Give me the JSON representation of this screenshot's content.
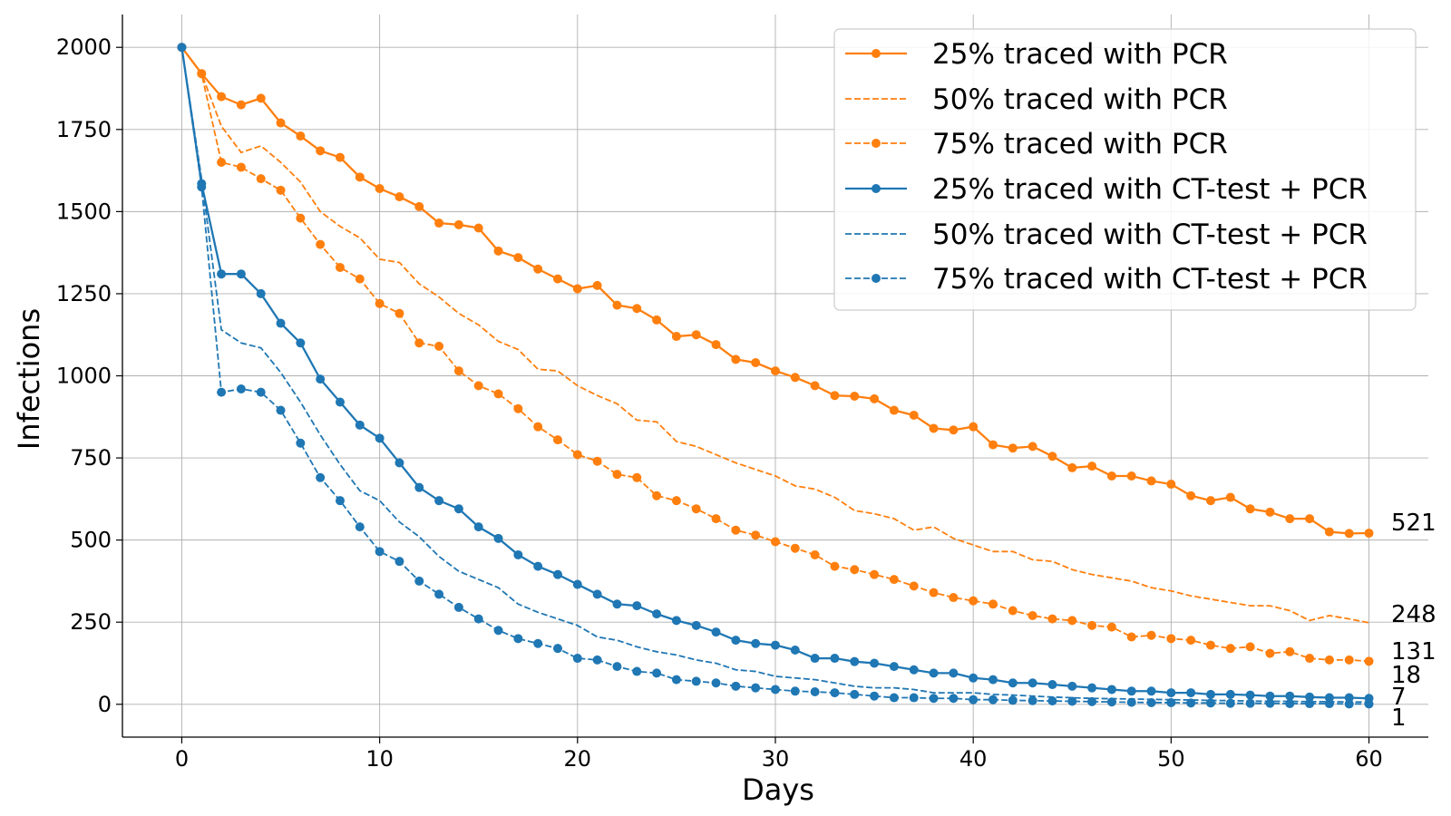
{
  "chart_data": {
    "type": "line",
    "xlabel": "Days",
    "ylabel": "Infections",
    "xlim": [
      -3,
      63
    ],
    "ylim": [
      -100,
      2100
    ],
    "xticks": [
      0,
      10,
      20,
      30,
      40,
      50,
      60
    ],
    "yticks": [
      0,
      250,
      500,
      750,
      1000,
      1250,
      1500,
      1750,
      2000
    ],
    "grid": true,
    "legend_position": "top-right",
    "colors": {
      "pcr": "#ff7f0e",
      "ct": "#1f77b4"
    },
    "x": [
      0,
      1,
      2,
      3,
      4,
      5,
      6,
      7,
      8,
      9,
      10,
      11,
      12,
      13,
      14,
      15,
      16,
      17,
      18,
      19,
      20,
      21,
      22,
      23,
      24,
      25,
      26,
      27,
      28,
      29,
      30,
      31,
      32,
      33,
      34,
      35,
      36,
      37,
      38,
      39,
      40,
      41,
      42,
      43,
      44,
      45,
      46,
      47,
      48,
      49,
      50,
      51,
      52,
      53,
      54,
      55,
      56,
      57,
      58,
      59,
      60
    ],
    "series": [
      {
        "name": "25% traced with PCR",
        "color": "#ff7f0e",
        "style": "solid",
        "markers": true,
        "values": [
          2000,
          1920,
          1850,
          1825,
          1845,
          1770,
          1730,
          1685,
          1665,
          1605,
          1570,
          1545,
          1515,
          1465,
          1460,
          1450,
          1380,
          1360,
          1325,
          1295,
          1265,
          1275,
          1215,
          1205,
          1170,
          1120,
          1125,
          1095,
          1050,
          1040,
          1015,
          995,
          970,
          940,
          938,
          930,
          895,
          880,
          840,
          835,
          845,
          790,
          780,
          785,
          755,
          720,
          725,
          695,
          695,
          680,
          670,
          635,
          620,
          630,
          595,
          585,
          565,
          565,
          525,
          520,
          521
        ]
      },
      {
        "name": "50% traced with PCR",
        "color": "#ff7f0e",
        "style": "dashed",
        "markers": false,
        "values": [
          2000,
          1920,
          1760,
          1680,
          1700,
          1650,
          1590,
          1500,
          1455,
          1420,
          1355,
          1345,
          1280,
          1240,
          1190,
          1155,
          1105,
          1080,
          1020,
          1015,
          970,
          940,
          915,
          865,
          860,
          800,
          785,
          760,
          735,
          715,
          695,
          665,
          655,
          630,
          590,
          580,
          565,
          530,
          540,
          505,
          485,
          465,
          465,
          440,
          435,
          410,
          395,
          385,
          375,
          355,
          345,
          330,
          320,
          310,
          300,
          300,
          285,
          255,
          270,
          260,
          248
        ]
      },
      {
        "name": "75% traced with PCR",
        "color": "#ff7f0e",
        "style": "dashed",
        "markers": true,
        "values": [
          2000,
          1920,
          1650,
          1635,
          1600,
          1565,
          1480,
          1400,
          1330,
          1295,
          1220,
          1190,
          1100,
          1090,
          1015,
          970,
          945,
          900,
          845,
          805,
          760,
          740,
          700,
          690,
          635,
          620,
          595,
          565,
          530,
          515,
          495,
          475,
          455,
          420,
          410,
          395,
          380,
          360,
          340,
          325,
          315,
          305,
          285,
          270,
          260,
          255,
          240,
          235,
          205,
          210,
          200,
          195,
          180,
          170,
          175,
          155,
          160,
          140,
          135,
          135,
          131
        ]
      },
      {
        "name": "25% traced with CT-test + PCR",
        "color": "#1f77b4",
        "style": "solid",
        "markers": true,
        "values": [
          2000,
          1585,
          1310,
          1310,
          1250,
          1160,
          1100,
          990,
          920,
          850,
          810,
          735,
          660,
          620,
          595,
          540,
          505,
          455,
          420,
          395,
          365,
          335,
          305,
          300,
          275,
          255,
          240,
          220,
          195,
          185,
          180,
          165,
          140,
          140,
          130,
          125,
          115,
          105,
          95,
          95,
          80,
          75,
          65,
          65,
          60,
          55,
          50,
          45,
          40,
          40,
          35,
          35,
          30,
          30,
          28,
          25,
          25,
          22,
          20,
          20,
          18
        ]
      },
      {
        "name": "50% traced with CT-test + PCR",
        "color": "#1f77b4",
        "style": "dashed",
        "markers": false,
        "values": [
          2000,
          1600,
          1140,
          1100,
          1085,
          1010,
          920,
          820,
          730,
          650,
          620,
          555,
          510,
          450,
          405,
          380,
          355,
          305,
          280,
          260,
          240,
          205,
          195,
          175,
          160,
          150,
          135,
          125,
          105,
          100,
          85,
          80,
          75,
          65,
          55,
          50,
          50,
          45,
          35,
          35,
          35,
          30,
          28,
          25,
          22,
          20,
          18,
          17,
          16,
          15,
          14,
          13,
          12,
          11,
          10,
          9,
          9,
          8,
          8,
          7,
          7
        ]
      },
      {
        "name": "75% traced with CT-test + PCR",
        "color": "#1f77b4",
        "style": "dashed",
        "markers": true,
        "values": [
          2000,
          1575,
          950,
          960,
          950,
          895,
          795,
          690,
          620,
          540,
          465,
          435,
          375,
          335,
          295,
          260,
          225,
          200,
          185,
          170,
          140,
          135,
          115,
          100,
          95,
          75,
          70,
          65,
          55,
          50,
          45,
          40,
          38,
          35,
          30,
          25,
          20,
          20,
          18,
          18,
          14,
          14,
          12,
          11,
          10,
          9,
          8,
          7,
          6,
          5,
          5,
          4,
          4,
          3,
          3,
          3,
          2,
          2,
          2,
          1,
          1
        ]
      }
    ],
    "end_labels": [
      "521",
      "248",
      "131",
      "18",
      "7",
      "1"
    ]
  }
}
